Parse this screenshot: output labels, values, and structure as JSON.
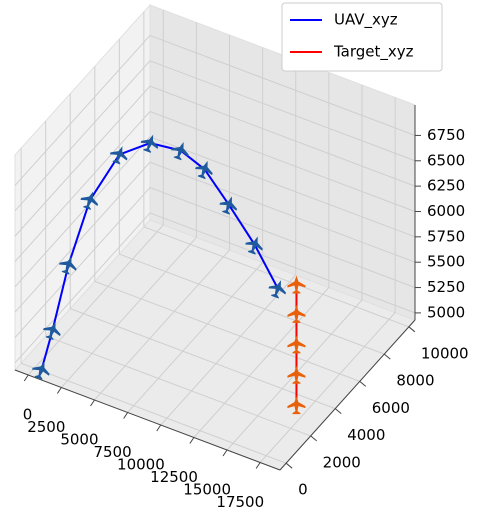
{
  "chart_data": {
    "type": "line3d",
    "xlim": [
      -1000,
      19000
    ],
    "ylim": [
      -500,
      10500
    ],
    "zlim": [
      4930,
      7050
    ],
    "xticks": [
      0,
      2500,
      5000,
      7500,
      10000,
      12500,
      15000,
      17500
    ],
    "yticks": [
      0,
      2000,
      4000,
      6000,
      8000,
      10000
    ],
    "zticks": [
      5000,
      5250,
      5500,
      5750,
      6000,
      6250,
      6500,
      6750
    ],
    "grid": true,
    "legend": "upper right",
    "series": [
      {
        "name": "UAV_xyz",
        "color": "#0000ff",
        "marker_color": "#1f5a9e",
        "x": [
          1000,
          1000,
          1000,
          1600,
          2800,
          4100,
          6400,
          8400,
          10700,
          13200,
          15600
        ],
        "y": [
          -500,
          400,
          1700,
          2800,
          3900,
          5000,
          5000,
          4800,
          4300,
          3700,
          3000
        ],
        "z": [
          5030,
          5300,
          5770,
          6290,
          6650,
          6680,
          6720,
          6660,
          6490,
          6300,
          6080
        ]
      },
      {
        "name": "Target_xyz",
        "color": "#ff0000",
        "marker_color": "#e8600a",
        "x": [
          17000,
          17000,
          17000,
          17000,
          17000
        ],
        "y": [
          3000,
          3000,
          3000,
          3000,
          3000
        ],
        "z": [
          5000,
          5300,
          5600,
          5900,
          6190
        ]
      }
    ]
  }
}
